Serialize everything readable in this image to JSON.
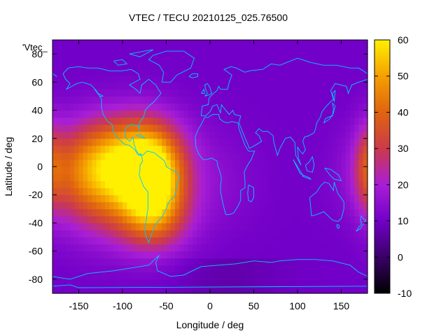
{
  "chart_data": {
    "type": "heatmap",
    "title": "VTEC / TECU 20210125_025.76500",
    "xlabel": "Longitude / deg",
    "ylabel": "Latitude / deg",
    "series_label": "'Vtec_",
    "xlim": [
      -180,
      180
    ],
    "ylim": [
      -90,
      90
    ],
    "x_ticks": [
      -150,
      -100,
      -50,
      0,
      50,
      100,
      150
    ],
    "y_ticks": [
      -80,
      -60,
      -40,
      -20,
      0,
      20,
      40,
      60,
      80
    ],
    "colorbar": {
      "min": -10,
      "max": 60,
      "ticks": [
        -10,
        0,
        10,
        20,
        30,
        40,
        50,
        60
      ],
      "palette": [
        "#000000",
        "#3a0068",
        "#7200c8",
        "#a81ed6",
        "#cc3a4a",
        "#e06410",
        "#f5a000",
        "#fff000"
      ]
    },
    "background_value": 10,
    "peaks": [
      {
        "lon": -65,
        "lat": -12,
        "value": 52,
        "sigma_lon": 24,
        "sigma_lat": 24
      },
      {
        "lon": -105,
        "lat": -12,
        "value": 38,
        "sigma_lon": 45,
        "sigma_lat": 26
      },
      {
        "lon": -135,
        "lat": 0,
        "value": 30,
        "sigma_lon": 38,
        "sigma_lat": 22
      },
      {
        "lon": -85,
        "lat": 15,
        "value": 26,
        "sigma_lon": 35,
        "sigma_lat": 18
      },
      {
        "lon": -60,
        "lat": -40,
        "value": 18,
        "sigma_lon": 30,
        "sigma_lat": 15
      },
      {
        "lon": 180,
        "lat": 0,
        "value": 24,
        "sigma_lon": 10,
        "sigma_lat": 22
      },
      {
        "lon": 0,
        "lat": -10,
        "value": 14,
        "sigma_lon": 40,
        "sigma_lat": 25
      }
    ],
    "grid": false,
    "legend_position": "top-left"
  }
}
